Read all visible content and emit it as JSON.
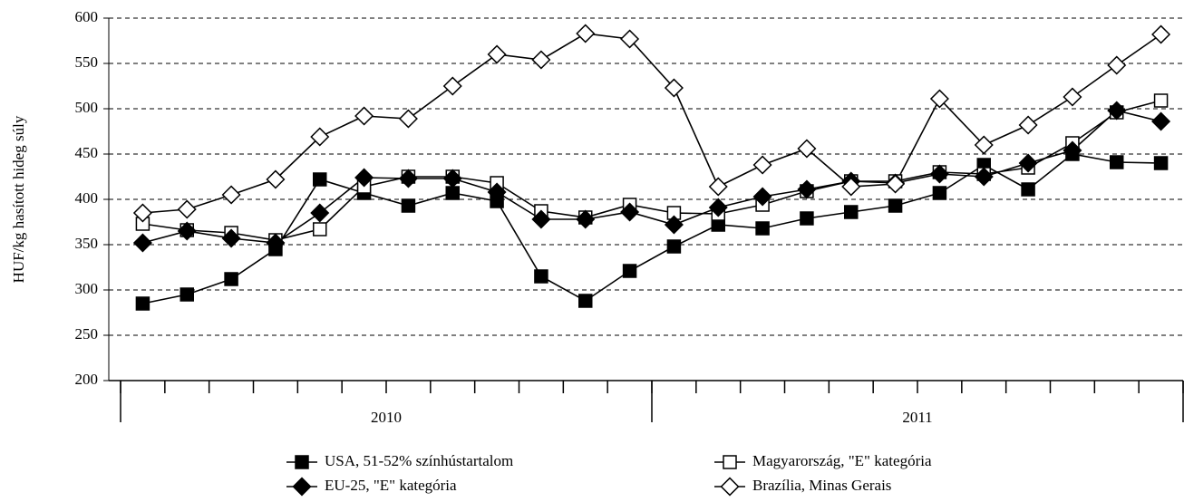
{
  "chart_data": {
    "type": "line",
    "y_label": "HUF/kg hasított hideg súly",
    "categories": [
      null,
      null,
      null,
      null,
      null,
      null,
      null,
      null,
      null,
      null,
      null,
      null,
      null,
      null,
      null,
      null,
      null,
      null,
      null,
      null,
      null,
      null,
      null,
      null
    ],
    "groups": [
      {
        "label": "2010",
        "size": 12
      },
      {
        "label": "2011",
        "size": 12
      }
    ],
    "ylim": [
      200,
      600
    ],
    "yticks": [
      200,
      250,
      300,
      350,
      400,
      450,
      500,
      550,
      600
    ],
    "grid": true,
    "series": [
      {
        "name": "USA, 51-52% színhústartalom",
        "color": "#000000",
        "marker": "square",
        "filled": true,
        "values": [
          285,
          295,
          312,
          345,
          422,
          407,
          393,
          407,
          398,
          315,
          288,
          321,
          348,
          372,
          368,
          379,
          386,
          393,
          407,
          438,
          411,
          450,
          441,
          440
        ]
      },
      {
        "name": "Magyarország, \"E\" kategória",
        "color": "#000000",
        "marker": "square",
        "filled": false,
        "values": [
          373,
          366,
          363,
          355,
          367,
          414,
          425,
          425,
          418,
          387,
          380,
          394,
          385,
          384,
          394,
          409,
          420,
          420,
          430,
          428,
          435,
          462,
          496,
          509
        ]
      },
      {
        "name": "EU-25, \"E\" kategória",
        "color": "#000000",
        "marker": "diamond",
        "filled": true,
        "values": [
          352,
          365,
          357,
          352,
          385,
          424,
          423,
          423,
          408,
          378,
          378,
          386,
          372,
          391,
          403,
          411,
          420,
          418,
          428,
          425,
          440,
          454,
          498,
          486
        ]
      },
      {
        "name": "Brazília, Minas Gerais",
        "color": "#000000",
        "marker": "diamond",
        "filled": false,
        "values": [
          385,
          389,
          405,
          422,
          469,
          492,
          489,
          525,
          560,
          554,
          583,
          577,
          523,
          414,
          438,
          456,
          414,
          417,
          511,
          460,
          482,
          513,
          548,
          582
        ]
      }
    ]
  }
}
